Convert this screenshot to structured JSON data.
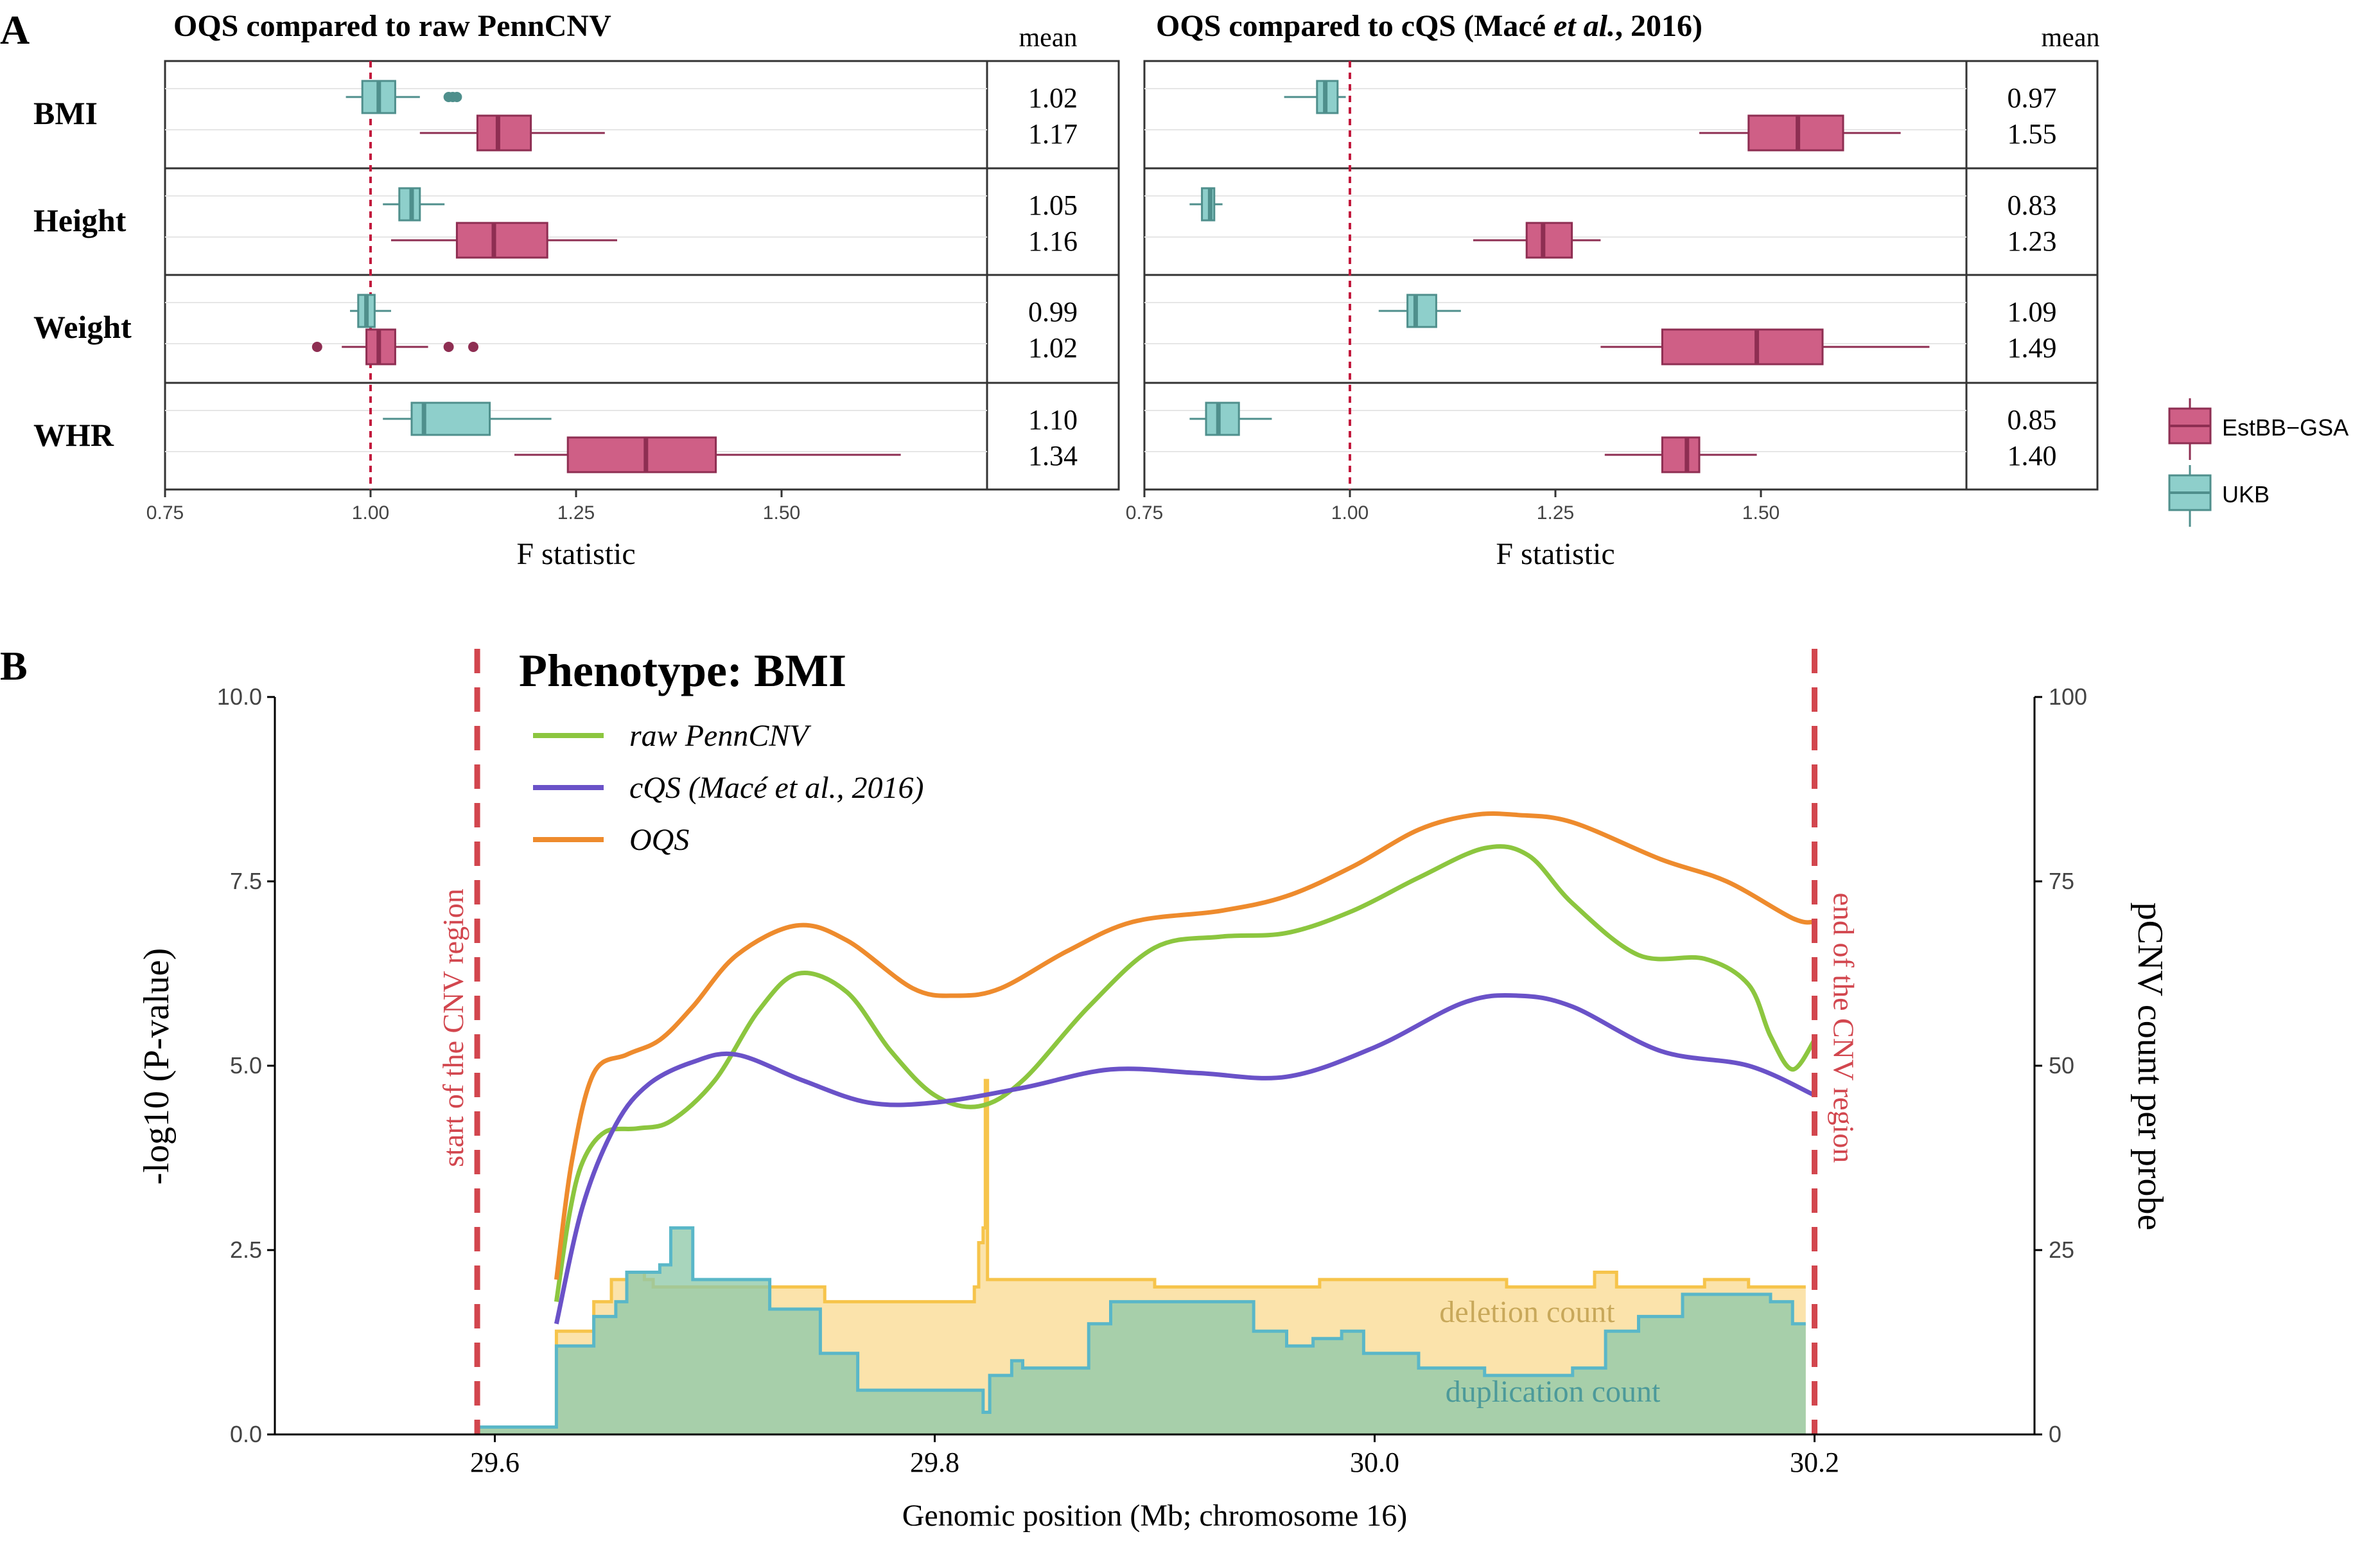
{
  "panel_a": {
    "label": "A",
    "mean_header": "mean",
    "legend": [
      {
        "name": "EstBB−GSA",
        "color": "#cf5f86",
        "stroke": "#8e2e52"
      },
      {
        "name": "UKB",
        "color": "#8ecfcb",
        "stroke": "#4f8f8c"
      }
    ]
  },
  "panel_b": {
    "label": "B",
    "region_start_label": "start of the CNV region",
    "region_end_label": "end of the CNV region",
    "deletion_label": "deletion count",
    "duplication_label": "duplication count"
  },
  "chart_data": [
    {
      "type": "boxplot",
      "title": "OQS compared to raw PennCNV",
      "xlabel": "F statistic",
      "xlim": [
        0.75,
        1.75
      ],
      "xticks": [
        "0.75",
        "1.00",
        "1.25",
        "1.50"
      ],
      "reference_line": 1.0,
      "traits": [
        {
          "name": "BMI",
          "ukb": {
            "min": 0.97,
            "q1": 0.99,
            "median": 1.01,
            "q3": 1.03,
            "max": 1.06,
            "outliers": [
              1.095,
              1.1,
              1.105
            ],
            "mean": "1.02"
          },
          "estbb": {
            "min": 1.06,
            "q1": 1.13,
            "median": 1.155,
            "q3": 1.195,
            "max": 1.285,
            "outliers": [],
            "mean": "1.17"
          }
        },
        {
          "name": "Height",
          "ukb": {
            "min": 1.015,
            "q1": 1.035,
            "median": 1.05,
            "q3": 1.06,
            "max": 1.09,
            "outliers": [],
            "mean": "1.05"
          },
          "estbb": {
            "min": 1.025,
            "q1": 1.105,
            "median": 1.15,
            "q3": 1.215,
            "max": 1.3,
            "outliers": [],
            "mean": "1.16"
          }
        },
        {
          "name": "Weight",
          "ukb": {
            "min": 0.975,
            "q1": 0.985,
            "median": 0.995,
            "q3": 1.005,
            "max": 1.025,
            "outliers": [],
            "mean": "0.99"
          },
          "estbb": {
            "min": 0.965,
            "q1": 0.995,
            "median": 1.01,
            "q3": 1.03,
            "max": 1.07,
            "outliers": [
              0.935,
              1.095,
              1.125
            ],
            "mean": "1.02"
          }
        },
        {
          "name": "WHR",
          "ukb": {
            "min": 1.015,
            "q1": 1.05,
            "median": 1.065,
            "q3": 1.145,
            "max": 1.22,
            "outliers": [],
            "mean": "1.10"
          },
          "estbb": {
            "min": 1.175,
            "q1": 1.24,
            "median": 1.335,
            "q3": 1.42,
            "max": 1.645,
            "outliers": [],
            "mean": "1.34"
          }
        }
      ]
    },
    {
      "type": "boxplot",
      "title_parts": [
        "OQS compared to cQS (Macé ",
        "et al.",
        ", 2016)"
      ],
      "xlabel": "F statistic",
      "xlim": [
        0.75,
        1.75
      ],
      "xticks": [
        "0.75",
        "1.00",
        "1.25",
        "1.50"
      ],
      "reference_line": 1.0,
      "traits": [
        {
          "name": "BMI",
          "ukb": {
            "min": 0.92,
            "q1": 0.96,
            "median": 0.97,
            "q3": 0.985,
            "max": 0.995,
            "outliers": [],
            "mean": "0.97"
          },
          "estbb": {
            "min": 1.425,
            "q1": 1.485,
            "median": 1.545,
            "q3": 1.6,
            "max": 1.67,
            "outliers": [],
            "mean": "1.55"
          }
        },
        {
          "name": "Height",
          "ukb": {
            "min": 0.805,
            "q1": 0.82,
            "median": 0.83,
            "q3": 0.835,
            "max": 0.845,
            "outliers": [],
            "mean": "0.83"
          },
          "estbb": {
            "min": 1.15,
            "q1": 1.215,
            "median": 1.235,
            "q3": 1.27,
            "max": 1.305,
            "outliers": [],
            "mean": "1.23"
          }
        },
        {
          "name": "Weight",
          "ukb": {
            "min": 1.035,
            "q1": 1.07,
            "median": 1.08,
            "q3": 1.105,
            "max": 1.135,
            "outliers": [],
            "mean": "1.09"
          },
          "estbb": {
            "min": 1.305,
            "q1": 1.38,
            "median": 1.495,
            "q3": 1.575,
            "max": 1.705,
            "outliers": [],
            "mean": "1.49"
          }
        },
        {
          "name": "WHR",
          "ukb": {
            "min": 0.805,
            "q1": 0.825,
            "median": 0.84,
            "q3": 0.865,
            "max": 0.905,
            "outliers": [],
            "mean": "0.85"
          },
          "estbb": {
            "min": 1.31,
            "q1": 1.38,
            "median": 1.41,
            "q3": 1.425,
            "max": 1.495,
            "outliers": [],
            "mean": "1.40"
          }
        }
      ]
    },
    {
      "type": "line",
      "title": "Phenotype: BMI",
      "xlabel": "Genomic position (Mb; chromosome 16)",
      "ylabel": "-log10 (P-value)",
      "y2label": "pCNV count per probe",
      "xlim": [
        29.5,
        30.3
      ],
      "ylim": [
        0,
        10
      ],
      "y2lim": [
        0,
        100
      ],
      "xticks": [
        "29.6",
        "29.8",
        "30.0",
        "30.2"
      ],
      "yticks": [
        "0.0",
        "2.5",
        "5.0",
        "7.5",
        "10.0"
      ],
      "y2ticks": [
        "0",
        "25",
        "50",
        "75",
        "100"
      ],
      "region": [
        29.592,
        30.2
      ],
      "series": [
        {
          "name": "raw PennCNV",
          "color": "#8cc63f",
          "x": [
            29.628,
            29.634,
            29.64,
            29.65,
            29.665,
            29.68,
            29.7,
            29.72,
            29.738,
            29.76,
            29.78,
            29.8,
            29.82,
            29.84,
            29.87,
            29.9,
            29.93,
            29.96,
            29.99,
            30.02,
            30.05,
            30.07,
            30.09,
            30.12,
            30.15,
            30.17,
            30.18,
            30.19,
            30.2
          ],
          "y": [
            1.8,
            3.0,
            3.7,
            4.1,
            4.15,
            4.25,
            4.8,
            5.75,
            6.25,
            6.0,
            5.2,
            4.6,
            4.45,
            4.8,
            5.8,
            6.6,
            6.75,
            6.8,
            7.1,
            7.55,
            7.95,
            7.85,
            7.2,
            6.5,
            6.45,
            6.1,
            5.4,
            4.95,
            5.35
          ]
        },
        {
          "name": "cQS (Macé et al., 2016)",
          "color": "#6a52c8",
          "x": [
            29.628,
            29.64,
            29.655,
            29.67,
            29.69,
            29.71,
            29.74,
            29.77,
            29.8,
            29.84,
            29.88,
            29.92,
            29.96,
            30.0,
            30.04,
            30.065,
            30.09,
            30.13,
            30.17,
            30.2
          ],
          "y": [
            1.5,
            3.1,
            4.2,
            4.75,
            5.05,
            5.15,
            4.8,
            4.5,
            4.5,
            4.7,
            4.95,
            4.9,
            4.85,
            5.25,
            5.85,
            5.95,
            5.8,
            5.2,
            5.0,
            4.6
          ]
        },
        {
          "name": "OQS",
          "color": "#ee8b2d",
          "x": [
            29.628,
            29.635,
            29.645,
            29.66,
            29.675,
            29.69,
            29.71,
            29.737,
            29.76,
            29.79,
            29.81,
            29.83,
            29.86,
            29.89,
            29.93,
            29.96,
            29.99,
            30.02,
            30.045,
            30.065,
            30.09,
            30.13,
            30.16,
            30.19,
            30.2
          ],
          "y": [
            2.1,
            3.7,
            4.9,
            5.15,
            5.35,
            5.8,
            6.5,
            6.9,
            6.7,
            6.05,
            5.95,
            6.05,
            6.55,
            6.95,
            7.1,
            7.3,
            7.7,
            8.2,
            8.4,
            8.4,
            8.3,
            7.8,
            7.5,
            7.0,
            6.95
          ]
        }
      ],
      "count_series": [
        {
          "name": "deletion count",
          "color": "#f6c44b",
          "steps": [
            [
              29.593,
              1
            ],
            [
              29.618,
              1
            ],
            [
              29.628,
              14
            ],
            [
              29.645,
              18
            ],
            [
              29.653,
              21
            ],
            [
              29.66,
              22
            ],
            [
              29.668,
              21
            ],
            [
              29.672,
              20
            ],
            [
              29.71,
              20
            ],
            [
              29.75,
              18
            ],
            [
              29.818,
              20
            ],
            [
              29.82,
              26
            ],
            [
              29.822,
              28
            ],
            [
              29.823,
              48
            ],
            [
              29.824,
              21
            ],
            [
              29.85,
              21
            ],
            [
              29.9,
              20
            ],
            [
              29.975,
              21
            ],
            [
              30.06,
              20
            ],
            [
              30.1,
              22
            ],
            [
              30.11,
              20
            ],
            [
              30.15,
              21
            ],
            [
              30.17,
              20
            ],
            [
              30.196,
              20
            ]
          ]
        },
        {
          "name": "duplication count",
          "color": "#5ab7c8",
          "steps": [
            [
              29.593,
              1
            ],
            [
              29.618,
              1
            ],
            [
              29.628,
              12
            ],
            [
              29.64,
              12
            ],
            [
              29.645,
              16
            ],
            [
              29.655,
              18
            ],
            [
              29.66,
              22
            ],
            [
              29.675,
              23
            ],
            [
              29.68,
              28
            ],
            [
              29.69,
              21
            ],
            [
              29.7,
              21
            ],
            [
              29.725,
              17
            ],
            [
              29.748,
              11
            ],
            [
              29.765,
              6
            ],
            [
              29.783,
              6
            ],
            [
              29.8,
              6
            ],
            [
              29.822,
              3
            ],
            [
              29.825,
              8
            ],
            [
              29.835,
              10
            ],
            [
              29.84,
              9
            ],
            [
              29.865,
              9
            ],
            [
              29.87,
              15
            ],
            [
              29.88,
              18
            ],
            [
              29.935,
              18
            ],
            [
              29.945,
              14
            ],
            [
              29.96,
              12
            ],
            [
              29.972,
              13
            ],
            [
              29.985,
              14
            ],
            [
              29.995,
              11
            ],
            [
              30.02,
              9
            ],
            [
              30.05,
              8
            ],
            [
              30.07,
              8
            ],
            [
              30.09,
              9
            ],
            [
              30.105,
              14
            ],
            [
              30.12,
              16
            ],
            [
              30.14,
              19
            ],
            [
              30.18,
              18
            ],
            [
              30.19,
              15
            ],
            [
              30.196,
              15
            ]
          ]
        }
      ]
    }
  ]
}
